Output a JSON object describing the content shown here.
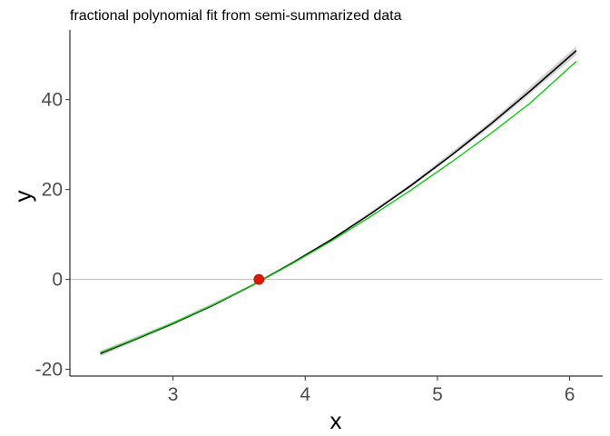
{
  "chart_data": {
    "type": "line",
    "title": "fractional polynomial fit from semi-summarized data",
    "xlabel": "x",
    "ylabel": "y",
    "xlim": [
      2.22,
      6.25
    ],
    "ylim": [
      -21.5,
      55.5
    ],
    "x_ticks": [
      3,
      4,
      5,
      6
    ],
    "y_ticks": [
      -20,
      0,
      20,
      40
    ],
    "grid": false,
    "reference_line_y": 0,
    "series": [
      {
        "kind": "fit",
        "color": "#000000",
        "x": [
          2.45,
          2.7,
          3.0,
          3.3,
          3.6,
          3.9,
          4.2,
          4.5,
          4.8,
          5.1,
          5.4,
          5.7,
          6.05
        ],
        "y": [
          -16.5,
          -13.5,
          -9.8,
          -5.8,
          -1.3,
          3.6,
          8.9,
          14.7,
          20.9,
          27.5,
          34.5,
          41.9,
          50.9
        ]
      },
      {
        "kind": "ci-band",
        "color": "#c8c8c8",
        "x": [
          2.45,
          3.0,
          3.6,
          4.2,
          4.8,
          5.4,
          6.05
        ],
        "y_low": [
          -17.1,
          -10.2,
          -1.5,
          8.7,
          20.5,
          33.9,
          49.9
        ],
        "y_high": [
          -15.9,
          -9.4,
          -1.1,
          9.1,
          21.3,
          35.1,
          51.9
        ]
      },
      {
        "kind": "true-curve",
        "color": "#00cc00",
        "x": [
          2.45,
          2.7,
          3.0,
          3.3,
          3.6,
          3.9,
          4.2,
          4.5,
          4.8,
          5.1,
          5.4,
          5.7,
          6.05
        ],
        "y": [
          -16.3,
          -13.4,
          -9.7,
          -5.7,
          -1.3,
          3.5,
          8.6,
          14.1,
          19.9,
          26.0,
          32.4,
          39.2,
          48.5
        ]
      }
    ],
    "points": [
      {
        "x": 3.65,
        "y": 0,
        "color": "#dd1a00"
      }
    ]
  }
}
